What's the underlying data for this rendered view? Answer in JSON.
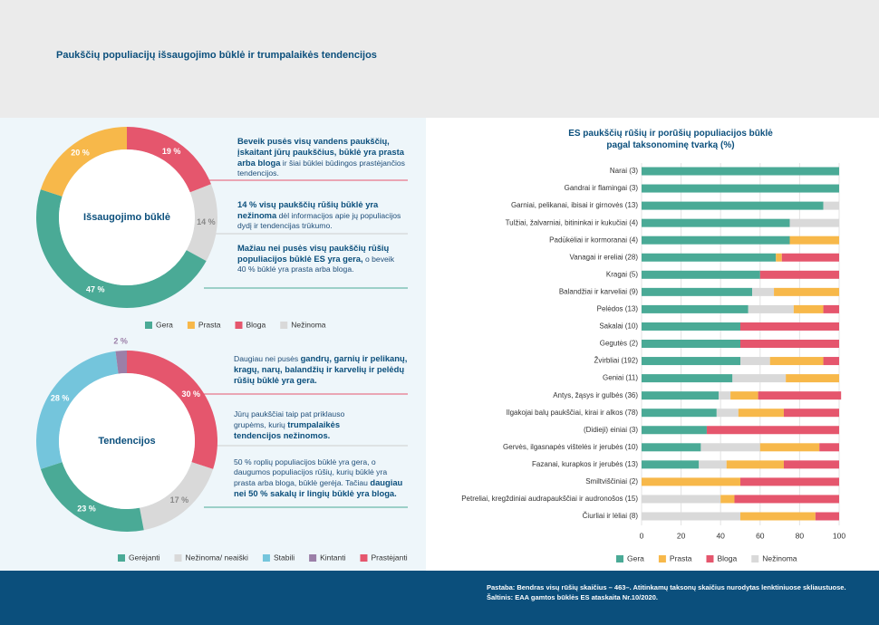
{
  "title": "Paukščių populiacijų išsaugojimo būklė ir trumpalaikės tendencijos",
  "annotations": [
    {
      "parts": [
        {
          "text": "Beveik pusės visų vandens paukščių, įskaitant jūrų paukščius, būklė yra prasta arba bloga",
          "bold": true
        },
        {
          "text": " ir šiai būklei būdingos prastėjančios tendencijos.",
          "bold": false
        }
      ]
    },
    {
      "parts": [
        {
          "text": "14 % visų paukščių rūšių būklė yra nežinoma",
          "bold": true
        },
        {
          "text": " dėl informacijos apie jų populiacijos dydį ir tendencijas trūkumo.",
          "bold": false
        }
      ]
    },
    {
      "parts": [
        {
          "text": "Mažiau nei pusės visų paukščių rūšių populiacijos būklė ES yra gera,",
          "bold": true
        },
        {
          "text": " o beveik 40 % būklė yra prasta arba bloga.",
          "bold": false
        }
      ]
    },
    {
      "parts": [
        {
          "text": "Daugiau nei pusės ",
          "bold": false
        },
        {
          "text": "gandrų, garnių ir pelikanų, kragų, narų, balandžių ir karvelių ir pelėdų rūšių būklė yra gera.",
          "bold": true
        }
      ]
    },
    {
      "parts": [
        {
          "text": "Jūrų paukščiai taip pat priklauso grupėms, kurių ",
          "bold": false
        },
        {
          "text": "trumpalaikės tendencijos nežinomos.",
          "bold": true
        }
      ]
    },
    {
      "parts": [
        {
          "text": "50 % roplių populiacijos būklė yra gera, o daugumos populiacijos rūšių, kurių būklė yra prasta arba bloga, būklė gerėja. Tačiau ",
          "bold": false
        },
        {
          "text": "daugiau nei 50 % sakalų ir lingių būklė yra bloga.",
          "bold": true
        }
      ]
    }
  ],
  "footer": {
    "note": "Pastaba: Bendras visų rūšių skaičius – 463–. Atitinkamų taksonų skaičius nurodytas lenktiniuose skliaustuose.",
    "source": "Šaltinis: EAA gamtos būklės ES ataskaita Nr.10/2020."
  },
  "chart_data": [
    {
      "type": "donut",
      "center_label": "Išsaugojimo būklė",
      "categories": [
        "Gera",
        "Prasta",
        "Bloga",
        "Nežinoma"
      ],
      "values": [
        47,
        20,
        19,
        14
      ],
      "value_labels": [
        "47 %",
        "20 %",
        "19 %",
        "14 %"
      ],
      "colors": [
        "#4aaa96",
        "#f7b84a",
        "#e5566d",
        "#d9d9d9"
      ]
    },
    {
      "type": "donut",
      "center_label": "Tendencijos",
      "categories": [
        "Gerėjanti",
        "Nežinoma/ neaiški",
        "Stabili",
        "Kintanti",
        "Prastėjanti"
      ],
      "values": [
        23,
        17,
        28,
        2,
        30
      ],
      "value_labels": [
        "23 %",
        "17 %",
        "28 %",
        "2 %",
        "30 %"
      ],
      "colors": [
        "#4aaa96",
        "#d9d9d9",
        "#74c5dc",
        "#9b7fa8",
        "#e5566d"
      ]
    },
    {
      "type": "bar",
      "orientation": "horizontal",
      "stacked": true,
      "grid": true,
      "title": "ES paukščių rūšių ir porūšių populiacijos būklė pagal taksonominę tvarką (%)",
      "categories": [
        "Narai (3)",
        "Gandrai ir flamingai (3)",
        "Garniai, pelikanai, ibisai ir girnovės (13)",
        "Tulžiai, žalvarniai, bitininkai ir kukučiai (4)",
        "Padūkėliai ir kormoranai (4)",
        "Vanagai ir ereliai (28)",
        "Kragai (5)",
        "Balandžiai ir karveliai (9)",
        "Pelėdos (13)",
        "Sakalai (10)",
        "Gegutės (2)",
        "Žvirbliai (192)",
        "Geniai (11)",
        "Antys, žąsys ir gulbės (36)",
        "Ilgakojai balų paukščiai, kirai ir alkos (78)",
        "(Didieji) einiai (3)",
        "Gervės, ilgasnapės vištelės ir jerubės (10)",
        "Fazanai, kurapkos ir jerubės (13)",
        "Smiltviščiniai (2)",
        "Petreliai, kregždiniai audrapaukščiai ir audronošos (15)",
        "Čiurliai ir lėliai (8)"
      ],
      "series": [
        {
          "name": "Gera",
          "color": "#4aaa96",
          "values": [
            100,
            100,
            92,
            75,
            75,
            68,
            60,
            56,
            54,
            50,
            50,
            50,
            46,
            39,
            38,
            33,
            30,
            29,
            0,
            0,
            0
          ]
        },
        {
          "name": "Prasta",
          "color": "#f7b84a",
          "values": [
            0,
            0,
            0,
            0,
            25,
            3,
            0,
            33,
            15,
            0,
            0,
            27,
            27,
            14,
            23,
            0,
            30,
            29,
            50,
            7,
            38
          ]
        },
        {
          "name": "Bloga",
          "color": "#e5566d",
          "values": [
            0,
            0,
            0,
            0,
            0,
            29,
            40,
            0,
            8,
            50,
            50,
            8,
            0,
            42,
            28,
            67,
            10,
            28,
            50,
            53,
            12
          ]
        },
        {
          "name": "Nežinoma",
          "color": "#d9d9d9",
          "values": [
            0,
            0,
            8,
            25,
            0,
            0,
            0,
            11,
            23,
            0,
            0,
            15,
            27,
            6,
            11,
            0,
            30,
            14,
            0,
            40,
            50
          ]
        }
      ],
      "xlim": [
        0,
        100
      ],
      "xticks": [
        0,
        20,
        40,
        60,
        80,
        100
      ]
    }
  ]
}
